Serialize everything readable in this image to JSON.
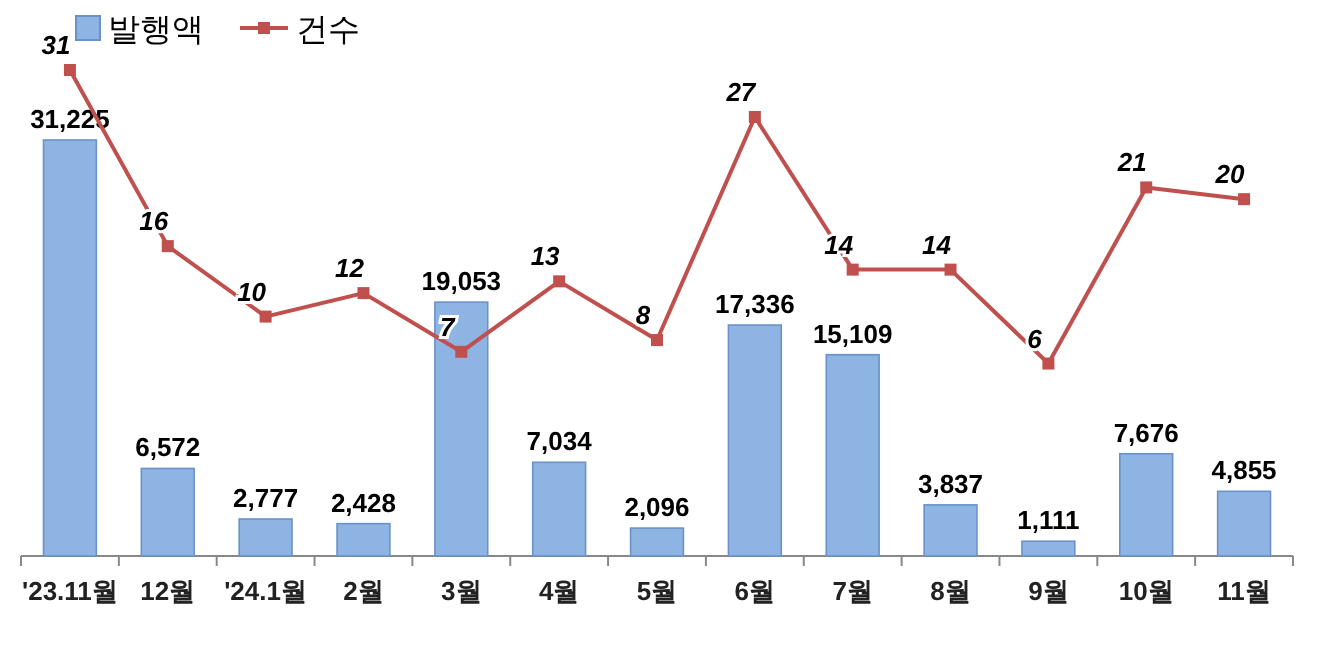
{
  "chart_data": {
    "type": "bar",
    "categories": [
      "'23.11월",
      "12월",
      "'24.1월",
      "2월",
      "3월",
      "4월",
      "5월",
      "6월",
      "7월",
      "8월",
      "9월",
      "10월",
      "11월"
    ],
    "series": [
      {
        "name": "발행액",
        "color": "#8eb4e3",
        "values": [
          31225,
          6572,
          2777,
          2428,
          19053,
          7034,
          2096,
          17336,
          15109,
          3837,
          1111,
          7676,
          4855
        ],
        "value_labels": [
          "31,225",
          "6,572",
          "2,777",
          "2,428",
          "19,053",
          "7,034",
          "2,096",
          "17,336",
          "15,109",
          "3,837",
          "1,111",
          "7,676",
          "4,855"
        ]
      },
      {
        "name": "건수",
        "type": "line",
        "axis": "y2",
        "color": "#c0504d",
        "marker": "square",
        "values": [
          31,
          16,
          10,
          12,
          7,
          13,
          8,
          27,
          14,
          14,
          6,
          21,
          20
        ],
        "value_labels": [
          "31",
          "16",
          "10",
          "12",
          "7",
          "13",
          "8",
          "27",
          "14",
          "14",
          "6",
          "21",
          "20"
        ]
      }
    ],
    "tick_labels": "x",
    "legend": "top left"
  }
}
